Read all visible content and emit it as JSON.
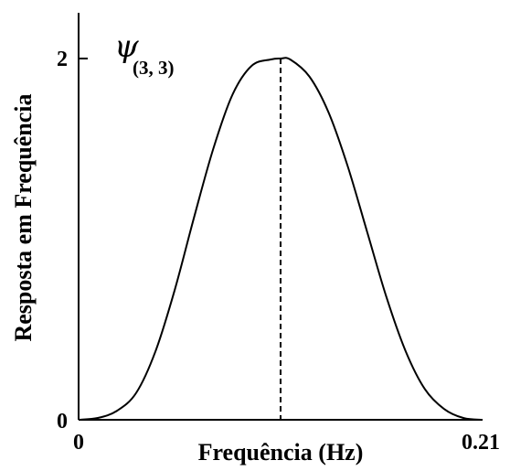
{
  "chart_data": {
    "type": "line",
    "title": "",
    "xlabel": "Frequência (Hz)",
    "ylabel": "Resposta em Frequência",
    "xlim": [
      0,
      0.21
    ],
    "ylim": [
      0,
      2
    ],
    "x_tick_labels": [
      "0",
      "0.21"
    ],
    "y_tick_labels": [
      "0",
      "2"
    ],
    "annotation": {
      "symbol": "ψ",
      "subscript": "(3, 3)"
    },
    "peak": {
      "x": 0.105,
      "y": 2
    },
    "series": [
      {
        "x": [
          0,
          0.01,
          0.02,
          0.03,
          0.04,
          0.05,
          0.06,
          0.07,
          0.08,
          0.09,
          0.1,
          0.105,
          0.11,
          0.12,
          0.13,
          0.14,
          0.15,
          0.16,
          0.17,
          0.18,
          0.19,
          0.2,
          0.21
        ],
        "values": [
          0,
          0.01,
          0.05,
          0.15,
          0.38,
          0.72,
          1.12,
          1.5,
          1.8,
          1.96,
          1.995,
          2.0,
          1.995,
          1.9,
          1.7,
          1.4,
          1.04,
          0.68,
          0.38,
          0.17,
          0.06,
          0.01,
          0.0
        ],
        "line_style": "solid",
        "color": "#000000"
      }
    ],
    "grid": false
  }
}
